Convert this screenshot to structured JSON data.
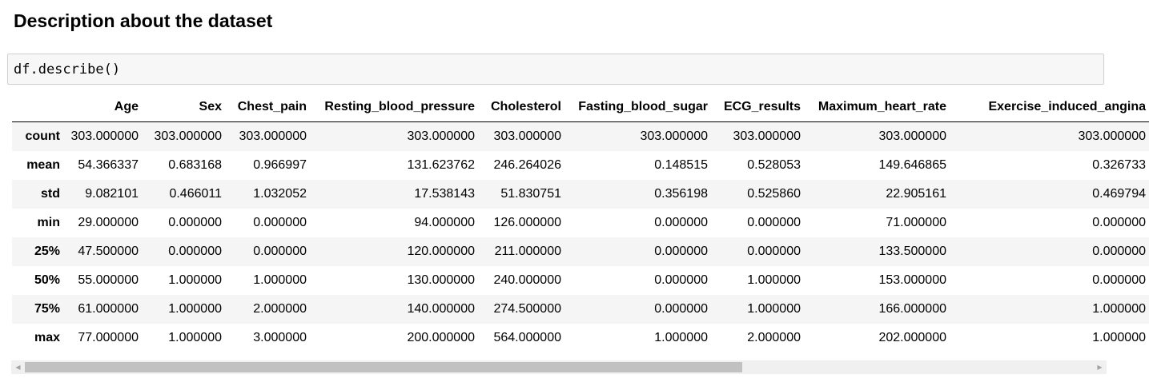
{
  "heading": "Description about the dataset",
  "code": "df.describe()",
  "table": {
    "columns": [
      "Age",
      "Sex",
      "Chest_pain",
      "Resting_blood_pressure",
      "Cholesterol",
      "Fasting_blood_sugar",
      "ECG_results",
      "Maximum_heart_rate",
      "Exercise_induced_angina"
    ],
    "rows": [
      {
        "index": "count",
        "values": [
          "303.000000",
          "303.000000",
          "303.000000",
          "303.000000",
          "303.000000",
          "303.000000",
          "303.000000",
          "303.000000",
          "303.000000"
        ]
      },
      {
        "index": "mean",
        "values": [
          "54.366337",
          "0.683168",
          "0.966997",
          "131.623762",
          "246.264026",
          "0.148515",
          "0.528053",
          "149.646865",
          "0.326733"
        ]
      },
      {
        "index": "std",
        "values": [
          "9.082101",
          "0.466011",
          "1.032052",
          "17.538143",
          "51.830751",
          "0.356198",
          "0.525860",
          "22.905161",
          "0.469794"
        ]
      },
      {
        "index": "min",
        "values": [
          "29.000000",
          "0.000000",
          "0.000000",
          "94.000000",
          "126.000000",
          "0.000000",
          "0.000000",
          "71.000000",
          "0.000000"
        ]
      },
      {
        "index": "25%",
        "values": [
          "47.500000",
          "0.000000",
          "0.000000",
          "120.000000",
          "211.000000",
          "0.000000",
          "0.000000",
          "133.500000",
          "0.000000"
        ]
      },
      {
        "index": "50%",
        "values": [
          "55.000000",
          "1.000000",
          "1.000000",
          "130.000000",
          "240.000000",
          "0.000000",
          "1.000000",
          "153.000000",
          "0.000000"
        ]
      },
      {
        "index": "75%",
        "values": [
          "61.000000",
          "1.000000",
          "2.000000",
          "140.000000",
          "274.500000",
          "0.000000",
          "1.000000",
          "166.000000",
          "1.000000"
        ]
      },
      {
        "index": "max",
        "values": [
          "77.000000",
          "1.000000",
          "3.000000",
          "200.000000",
          "564.000000",
          "1.000000",
          "2.000000",
          "202.000000",
          "1.000000"
        ]
      }
    ]
  },
  "scrollbar": {
    "left_arrow_icon": "arrow-left-icon",
    "right_arrow_icon": "arrow-right-icon",
    "scroll_position_fraction": 0.0,
    "visible_fraction": 0.66
  }
}
